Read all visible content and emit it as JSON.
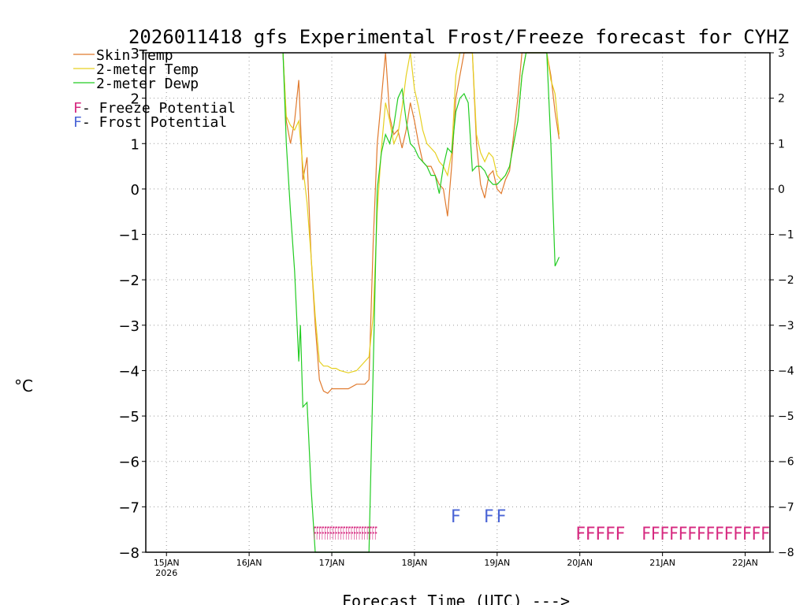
{
  "chart_data": {
    "type": "line",
    "title": "2026011418 gfs Experimental Frost/Freeze forecast for CYHZ",
    "ylabel": "°C",
    "xlabel": "Forecast Time (UTC) --->",
    "ylim": [
      -8,
      3
    ],
    "xlim_days": [
      14.75,
      22.3
    ],
    "yticks": [
      3,
      2,
      1,
      0,
      -1,
      -2,
      -3,
      -4,
      -5,
      -6,
      -7,
      -8
    ],
    "xticks": [
      {
        "day": 15,
        "label": "15JAN",
        "sublabel": "2026"
      },
      {
        "day": 16,
        "label": "16JAN",
        "sublabel": ""
      },
      {
        "day": 17,
        "label": "17JAN",
        "sublabel": ""
      },
      {
        "day": 18,
        "label": "18JAN",
        "sublabel": ""
      },
      {
        "day": 19,
        "label": "19JAN",
        "sublabel": ""
      },
      {
        "day": 20,
        "label": "20JAN",
        "sublabel": ""
      },
      {
        "day": 21,
        "label": "21JAN",
        "sublabel": ""
      },
      {
        "day": 22,
        "label": "22JAN",
        "sublabel": ""
      }
    ],
    "grid": true,
    "legend_placement": "top-left",
    "legend": [
      {
        "label": "Skin Temp",
        "color": "#e07a2e"
      },
      {
        "label": "2-meter Temp",
        "color": "#e6d020"
      },
      {
        "label": "2-meter Dewp",
        "color": "#22cc22"
      }
    ],
    "flag_legend": [
      {
        "symbol": "F",
        "text": " - Freeze Potential",
        "color": "#d6287f"
      },
      {
        "symbol": "F",
        "text": " - Frost Potential",
        "color": "#4a64d6"
      }
    ],
    "series": [
      {
        "name": "Skin Temp",
        "color": "#e07a2e",
        "x": [
          16.41,
          16.45,
          16.5,
          16.55,
          16.6,
          16.65,
          16.7,
          16.75,
          16.8,
          16.85,
          16.9,
          16.95,
          17.0,
          17.05,
          17.1,
          17.2,
          17.3,
          17.4,
          17.45,
          17.5,
          17.55,
          17.6,
          17.65,
          17.7,
          17.75,
          17.8,
          17.85,
          17.9,
          17.95,
          18.0,
          18.05,
          18.1,
          18.15,
          18.2,
          18.25,
          18.3,
          18.35,
          18.4,
          18.45,
          18.5,
          18.55,
          18.6,
          18.65,
          18.7,
          18.75,
          18.8,
          18.85,
          18.9,
          18.95,
          19.0,
          19.05,
          19.1,
          19.15,
          19.2,
          19.25,
          19.3,
          19.35,
          19.4,
          19.45,
          19.5,
          19.55,
          19.6,
          19.65,
          19.7,
          19.75
        ],
        "y": [
          3.0,
          1.5,
          1.0,
          1.5,
          2.4,
          0.2,
          0.7,
          -1.5,
          -3.0,
          -4.2,
          -4.45,
          -4.5,
          -4.4,
          -4.4,
          -4.4,
          -4.4,
          -4.3,
          -4.3,
          -4.2,
          -1.2,
          1.0,
          2.0,
          3.0,
          1.6,
          1.2,
          1.3,
          0.9,
          1.3,
          1.9,
          1.5,
          1.0,
          0.6,
          0.5,
          0.5,
          0.3,
          0.1,
          0.0,
          -0.6,
          0.5,
          2.0,
          2.5,
          3.0,
          3.0,
          3.0,
          1.0,
          0.1,
          -0.2,
          0.3,
          0.4,
          0.0,
          -0.1,
          0.2,
          0.4,
          1.2,
          2.0,
          3.0,
          3.0,
          3.0,
          3.0,
          3.0,
          3.0,
          3.0,
          2.5,
          1.7,
          1.1
        ]
      },
      {
        "name": "2-meter Temp",
        "color": "#e6d020",
        "x": [
          16.41,
          16.45,
          16.5,
          16.55,
          16.6,
          16.65,
          16.7,
          16.75,
          16.8,
          16.85,
          16.9,
          16.95,
          17.0,
          17.05,
          17.1,
          17.2,
          17.3,
          17.4,
          17.45,
          17.5,
          17.55,
          17.6,
          17.65,
          17.7,
          17.75,
          17.8,
          17.85,
          17.9,
          17.95,
          18.0,
          18.05,
          18.1,
          18.15,
          18.2,
          18.25,
          18.3,
          18.35,
          18.4,
          18.45,
          18.5,
          18.55,
          18.6,
          18.65,
          18.7,
          18.75,
          18.8,
          18.85,
          18.9,
          18.95,
          19.0,
          19.05,
          19.1,
          19.15,
          19.2,
          19.25,
          19.3,
          19.35,
          19.4,
          19.45,
          19.5,
          19.55,
          19.6,
          19.65,
          19.7,
          19.75
        ],
        "y": [
          3.0,
          1.6,
          1.4,
          1.3,
          1.5,
          0.5,
          -0.3,
          -1.5,
          -2.8,
          -3.8,
          -3.9,
          -3.9,
          -3.95,
          -3.95,
          -4.0,
          -4.05,
          -4.0,
          -3.8,
          -3.7,
          -2.8,
          -0.5,
          0.9,
          1.9,
          1.5,
          1.0,
          1.2,
          1.8,
          2.5,
          3.0,
          2.2,
          1.8,
          1.3,
          1.0,
          0.9,
          0.8,
          0.6,
          0.5,
          0.3,
          0.8,
          2.5,
          3.0,
          3.0,
          3.0,
          3.0,
          1.2,
          0.8,
          0.6,
          0.8,
          0.7,
          0.3,
          0.2,
          0.3,
          0.5,
          1.0,
          1.5,
          2.5,
          3.0,
          3.0,
          3.0,
          3.0,
          3.0,
          3.0,
          2.4,
          2.1,
          1.2
        ]
      },
      {
        "name": "2-meter Dewp",
        "color": "#22cc22",
        "x": [
          16.41,
          16.45,
          16.5,
          16.55,
          16.6,
          16.62,
          16.65,
          16.7,
          16.75,
          16.8,
          16.85,
          16.9,
          16.95,
          17.0,
          17.05,
          17.1,
          17.2,
          17.3,
          17.4,
          17.45,
          17.5,
          17.55,
          17.6,
          17.65,
          17.7,
          17.75,
          17.8,
          17.85,
          17.9,
          17.95,
          18.0,
          18.05,
          18.1,
          18.15,
          18.2,
          18.25,
          18.3,
          18.35,
          18.4,
          18.45,
          18.5,
          18.55,
          18.6,
          18.65,
          18.7,
          18.75,
          18.8,
          18.85,
          18.9,
          18.95,
          19.0,
          19.05,
          19.1,
          19.15,
          19.2,
          19.25,
          19.3,
          19.35,
          19.4,
          19.45,
          19.5,
          19.55,
          19.6,
          19.65,
          19.7,
          19.75
        ],
        "y": [
          3.0,
          1.0,
          -0.5,
          -1.8,
          -3.8,
          -3.0,
          -4.8,
          -4.7,
          -6.6,
          -8.0,
          -8.0,
          -8.0,
          -8.0,
          -8.0,
          -8.0,
          -8.0,
          -8.0,
          -8.0,
          -8.0,
          -8.0,
          -4.0,
          0.0,
          0.8,
          1.2,
          1.0,
          1.4,
          2.0,
          2.2,
          1.5,
          1.0,
          0.9,
          0.7,
          0.6,
          0.5,
          0.3,
          0.3,
          -0.1,
          0.5,
          0.9,
          0.8,
          1.7,
          2.0,
          2.1,
          1.9,
          0.4,
          0.5,
          0.5,
          0.4,
          0.2,
          0.1,
          0.1,
          0.2,
          0.3,
          0.5,
          1.0,
          1.5,
          2.5,
          3.0,
          3.0,
          3.0,
          3.0,
          3.0,
          3.0,
          1.0,
          -1.7,
          -1.5
        ]
      }
    ],
    "freeze_flags": [
      {
        "start": 16.78,
        "end": 17.55,
        "text": "FFFFFFFFFFFFFFFFFFFFFFFF",
        "level": -7.55
      },
      {
        "start": 19.95,
        "end": 20.55,
        "text": "FFFFF",
        "level": -7.55
      },
      {
        "start": 20.75,
        "end": 22.3,
        "text": "FFFFFFFFFFFFFF",
        "level": -7.55
      }
    ],
    "frost_flags": [
      {
        "day": 18.5,
        "text": "F",
        "level": -7.2
      },
      {
        "day": 18.9,
        "text": "F",
        "level": -7.2
      },
      {
        "day": 19.05,
        "text": "F",
        "level": -7.2
      }
    ]
  }
}
